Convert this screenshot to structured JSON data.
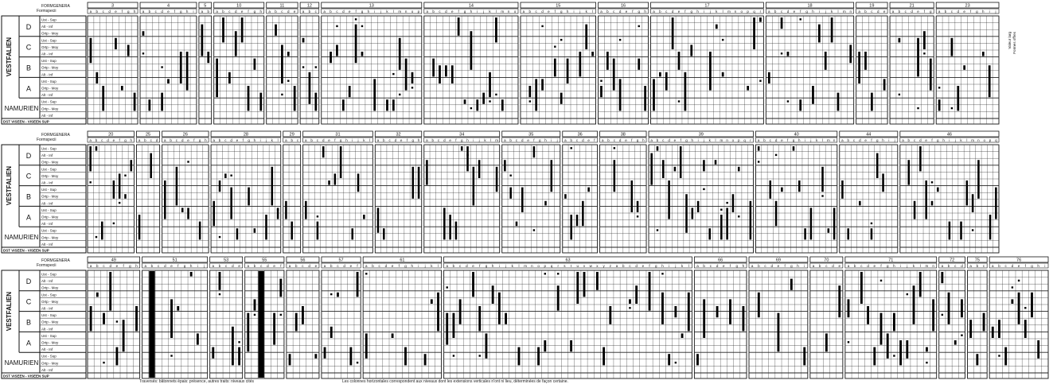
{
  "labels": {
    "formgenera": "FORMGENERA",
    "formspecii": "Formspecii",
    "vestfalien": "VESTFALIEN",
    "namurien": "NAMURIEN",
    "dinant": "DST VISEEN - VISEEN SUP",
    "right_note_1": "Valeur larg",
    "right_note_2": "Formes offres"
  },
  "stage_letters": [
    "D",
    "C",
    "B",
    "A"
  ],
  "sublevels_vest": [
    "Ust - Sup",
    "Alt - Inf",
    "Ortp - Moy",
    "Ust - Sup",
    "Ortp - Moy",
    "Alt - Inf",
    "Ust - Sup",
    "Ortp - Moy",
    "Alt - Inf",
    "Ust - Sup",
    "Ortp - Moy",
    "Alt - Inf"
  ],
  "sublevels_nam": [
    "Ust - Sup",
    "Ortp - Moy",
    "Alt - Inf"
  ],
  "captions": {
    "left": "Traversés: bâtonnets épais: présence, autres traits: niveaux cités",
    "right": "Les colonnes horizontales correspondent aux niveaux dont les extensions verticales n'ont ni lieu, déterminées de façon certaine."
  },
  "panels": [
    {
      "groups": [
        {
          "n": "3",
          "c": 8
        },
        {
          "n": "4",
          "c": 9
        },
        {
          "n": "5",
          "c": 2
        },
        {
          "n": "10",
          "c": 8
        },
        {
          "n": "11",
          "c": 5
        },
        {
          "n": "12",
          "c": 3
        },
        {
          "n": "13",
          "c": 16
        },
        {
          "n": "14",
          "c": 15
        },
        {
          "n": "15",
          "c": 12
        },
        {
          "n": "16",
          "c": 8
        },
        {
          "n": "17",
          "c": 18
        },
        {
          "n": "18",
          "c": 14
        },
        {
          "n": "19",
          "c": 5
        },
        {
          "n": "21",
          "c": 7
        },
        {
          "n": "23",
          "c": 10
        }
      ]
    },
    {
      "groups": [
        {
          "n": "20",
          "c": 8
        },
        {
          "n": "25",
          "c": 4
        },
        {
          "n": "26",
          "c": 8
        },
        {
          "n": "28",
          "c": 12
        },
        {
          "n": "29",
          "c": 3
        },
        {
          "n": "31",
          "c": 12
        },
        {
          "n": "32",
          "c": 8
        },
        {
          "n": "34",
          "c": 13
        },
        {
          "n": "35",
          "c": 10
        },
        {
          "n": "36",
          "c": 6
        },
        {
          "n": "38",
          "c": 8
        },
        {
          "n": "39",
          "c": 18
        },
        {
          "n": "40",
          "c": 14
        },
        {
          "n": "44",
          "c": 10
        },
        {
          "n": "46",
          "c": 17
        }
      ]
    },
    {
      "groups": [
        {
          "n": "49",
          "c": 8
        },
        {
          "n": "51",
          "c": 10
        },
        {
          "n": "53",
          "c": 5
        },
        {
          "n": "55",
          "c": 6
        },
        {
          "n": "56",
          "c": 5
        },
        {
          "n": "57",
          "c": 6
        },
        {
          "n": "61",
          "c": 12
        },
        {
          "n": "63",
          "c": 38
        },
        {
          "n": "66",
          "c": 8
        },
        {
          "n": "69",
          "c": 9
        },
        {
          "n": "70",
          "c": 5
        },
        {
          "n": "71",
          "c": 14
        },
        {
          "n": "72",
          "c": 4
        },
        {
          "n": "75",
          "c": 3
        },
        {
          "n": "76",
          "c": 9
        }
      ]
    }
  ]
}
